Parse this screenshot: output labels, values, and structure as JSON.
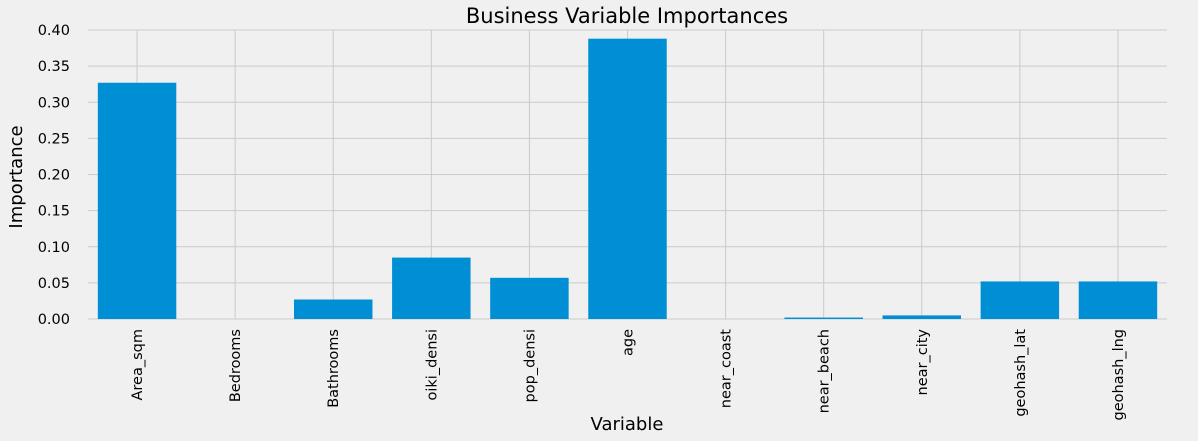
{
  "chart_data": {
    "type": "bar",
    "title": "Business Variable Importances",
    "xlabel": "Variable",
    "ylabel": "Importance",
    "categories": [
      "Area_sqm",
      "Bedrooms",
      "Bathrooms",
      "oiki_densi",
      "pop_densi",
      "age",
      "near_coast",
      "near_beach",
      "near_city",
      "geohash_lat",
      "geohash_lng"
    ],
    "values": [
      0.327,
      0.0,
      0.027,
      0.085,
      0.057,
      0.388,
      0.0,
      0.002,
      0.005,
      0.052,
      0.052
    ],
    "ylim": [
      0,
      0.4
    ],
    "yticks": [
      "0.00",
      "0.05",
      "0.10",
      "0.15",
      "0.20",
      "0.25",
      "0.30",
      "0.35",
      "0.40"
    ],
    "grid": true,
    "legend": "none",
    "bar_color": "#008fd5",
    "background_color": "#f0f0f0",
    "grid_color": "#cbcbcb"
  }
}
